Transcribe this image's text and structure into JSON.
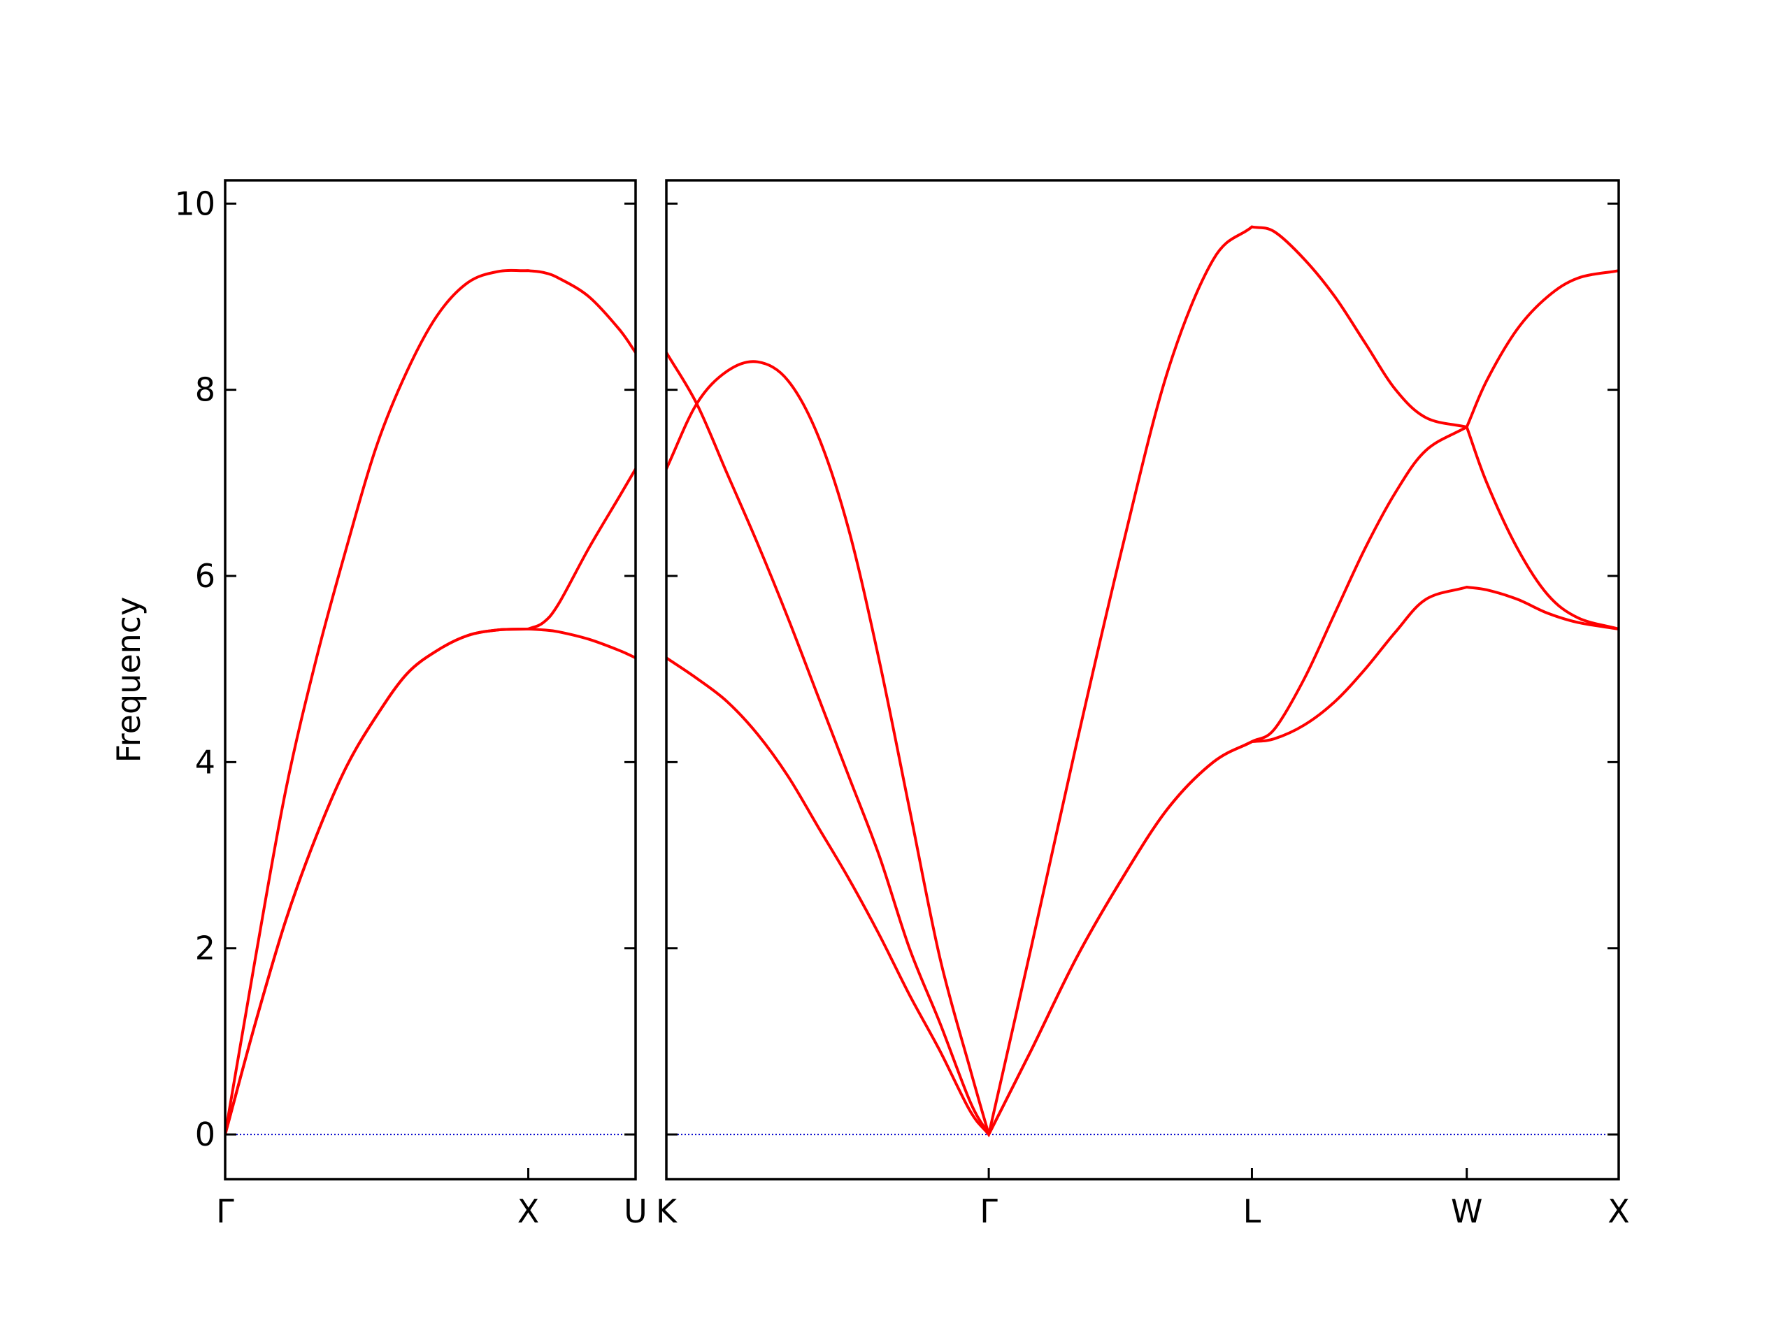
{
  "chart_data": [
    {
      "type": "line",
      "ylabel": "Frequency",
      "color": "#ff0000",
      "x": [
        0,
        0.1,
        0.2,
        0.3,
        0.4,
        0.5,
        0.6,
        0.7,
        0.8,
        0.9,
        1.0,
        1.05,
        1.1,
        1.2,
        1.3,
        1.354
      ],
      "series": [
        {
          "values": [
            0,
            1.2,
            2.3,
            3.2,
            3.95,
            4.5,
            4.95,
            5.2,
            5.36,
            5.42,
            5.43,
            5.42,
            5.4,
            5.32,
            5.2,
            5.12
          ]
        },
        {
          "values": [
            0,
            1.2,
            2.3,
            3.2,
            3.95,
            4.5,
            4.95,
            5.2,
            5.36,
            5.42,
            5.43,
            5.5,
            5.7,
            6.3,
            6.85,
            7.15
          ]
        },
        {
          "values": [
            0,
            1.9,
            3.7,
            5.1,
            6.3,
            7.4,
            8.2,
            8.8,
            9.15,
            9.27,
            9.28,
            9.26,
            9.2,
            9.0,
            8.65,
            8.4
          ]
        }
      ],
      "xlim": [
        0,
        1.354
      ],
      "xticks": [
        {
          "value": 0,
          "label": "Γ"
        },
        {
          "value": 1.0,
          "label": "X"
        },
        {
          "value": 1.354,
          "label": "U"
        }
      ],
      "ylim": [
        -0.48,
        10.25
      ],
      "yticks": [
        0,
        2,
        4,
        6,
        8,
        10
      ],
      "ytick_labels": true,
      "hlines": [
        {
          "y": 0,
          "color": "#0000cc"
        }
      ]
    },
    {
      "type": "line",
      "color": "#ff0000",
      "x": [
        0,
        0.1,
        0.2,
        0.3,
        0.4,
        0.5,
        0.6,
        0.7,
        0.8,
        0.9,
        1.0,
        1.061,
        1.2,
        1.35,
        1.5,
        1.65,
        1.8,
        1.927,
        2.0,
        2.1,
        2.2,
        2.3,
        2.4,
        2.5,
        2.634,
        2.7,
        2.8,
        2.9,
        3.0,
        3.134
      ],
      "series": [
        {
          "values": [
            5.12,
            4.9,
            4.65,
            4.3,
            3.85,
            3.3,
            2.75,
            2.15,
            1.5,
            0.9,
            0.25,
            0,
            0.9,
            1.9,
            2.75,
            3.5,
            4.0,
            4.22,
            4.25,
            4.4,
            4.65,
            5.0,
            5.4,
            5.75,
            5.88,
            5.85,
            5.75,
            5.6,
            5.5,
            5.43
          ]
        },
        {
          "values": [
            8.4,
            7.85,
            7.1,
            6.35,
            5.55,
            4.7,
            3.85,
            3.0,
            2.0,
            1.2,
            0.35,
            0,
            0.9,
            1.9,
            2.75,
            3.5,
            4.0,
            4.22,
            4.35,
            4.9,
            5.6,
            6.3,
            6.9,
            7.35,
            7.6,
            7.0,
            6.3,
            5.8,
            5.55,
            5.43
          ]
        },
        {
          "values": [
            7.15,
            7.85,
            8.2,
            8.3,
            8.1,
            7.5,
            6.5,
            5.1,
            3.5,
            1.9,
            0.7,
            0,
            2.0,
            4.2,
            6.3,
            8.2,
            9.4,
            9.75,
            9.7,
            9.4,
            9.0,
            8.5,
            8.0,
            7.7,
            7.6,
            8.1,
            8.65,
            9.0,
            9.2,
            9.28
          ]
        }
      ],
      "xlim": [
        0,
        3.134
      ],
      "xticks": [
        {
          "value": 0,
          "label": "K"
        },
        {
          "value": 1.061,
          "label": "Γ"
        },
        {
          "value": 1.927,
          "label": "L"
        },
        {
          "value": 2.634,
          "label": "W"
        },
        {
          "value": 3.134,
          "label": "X"
        }
      ],
      "ylim": [
        -0.48,
        10.25
      ],
      "yticks": [
        0,
        2,
        4,
        6,
        8,
        10
      ],
      "ytick_labels": false,
      "hlines": [
        {
          "y": 0,
          "color": "#0000cc"
        }
      ]
    }
  ]
}
